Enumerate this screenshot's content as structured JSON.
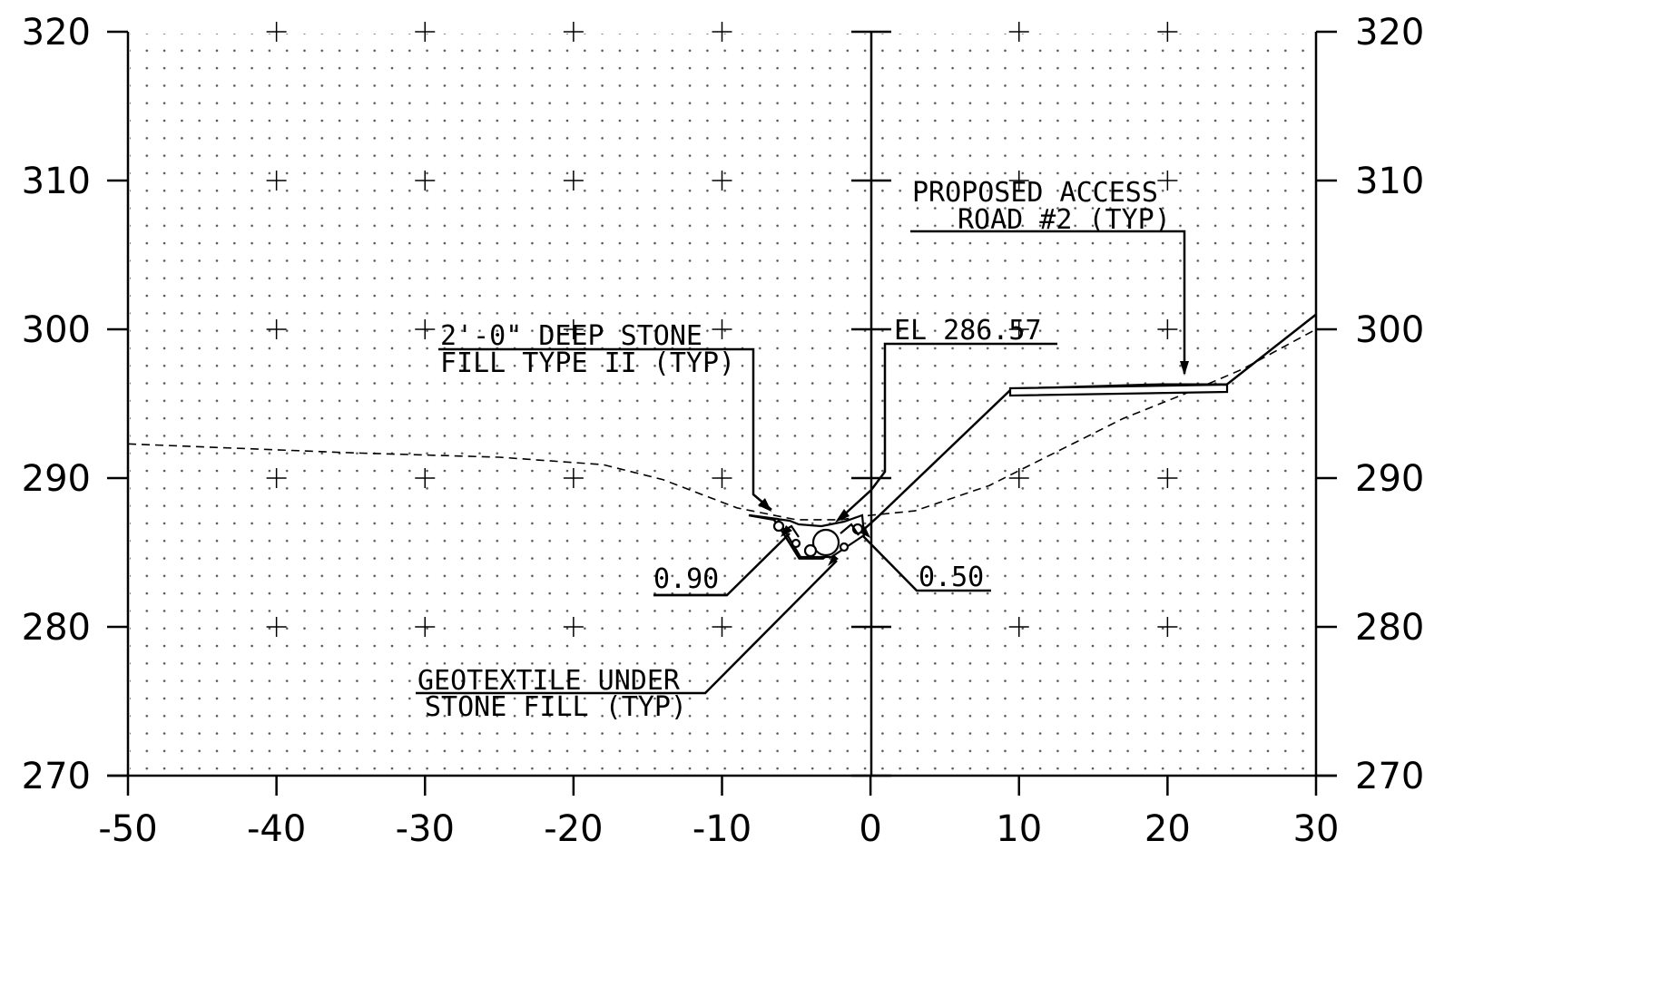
{
  "chart_data": {
    "type": "cross-section",
    "x_ticks": [
      "-50",
      "-40",
      "-30",
      "-20",
      "-10",
      "0",
      "10",
      "20",
      "30"
    ],
    "y_ticks": [
      "320",
      "310",
      "300",
      "290",
      "280",
      "270"
    ],
    "xlim": [
      -50,
      30
    ],
    "ylim": [
      270,
      320
    ],
    "x_step": 10,
    "y_step": 10,
    "grid": "dotted",
    "existing_ground": [
      [
        -50,
        292.3
      ],
      [
        -45,
        292.1
      ],
      [
        -35,
        291.7
      ],
      [
        -25,
        291.4
      ],
      [
        -18,
        290.9
      ],
      [
        -14,
        289.9
      ],
      [
        -9,
        288.0
      ],
      [
        -5,
        287.2
      ],
      [
        -2,
        287.2
      ],
      [
        0,
        287.5
      ],
      [
        3,
        287.8
      ],
      [
        8,
        289.5
      ],
      [
        13,
        292.0
      ],
      [
        17,
        294.0
      ],
      [
        21,
        295.6
      ],
      [
        25,
        297.3
      ],
      [
        30,
        300.0
      ]
    ],
    "proposed_grade": [
      [
        -8.2,
        287.5
      ],
      [
        -6.5,
        287.2
      ],
      [
        -6.0,
        286.5
      ],
      [
        -4.8,
        284.6
      ],
      [
        -3.2,
        284.6
      ],
      [
        -2.0,
        285.5
      ],
      [
        -0.5,
        286.5
      ],
      [
        0.5,
        287.4
      ],
      [
        9.5,
        296.0
      ],
      [
        19.5,
        296.3
      ],
      [
        24,
        296.3
      ],
      [
        30,
        301.0
      ]
    ],
    "annotations": {
      "stone_fill_1": "2'-0\" DEEP STONE",
      "stone_fill_2": "FILL TYPE II (TYP)",
      "elevation": "EL 286.57",
      "access_road_1": "PROPOSED ACCESS",
      "access_road_2": "ROAD #2 (TYP)",
      "slope_left": "0.90",
      "slope_right": "0.50",
      "geotextile_1": "GEOTEXTILE UNDER",
      "geotextile_2": "STONE FILL (TYP)"
    }
  }
}
